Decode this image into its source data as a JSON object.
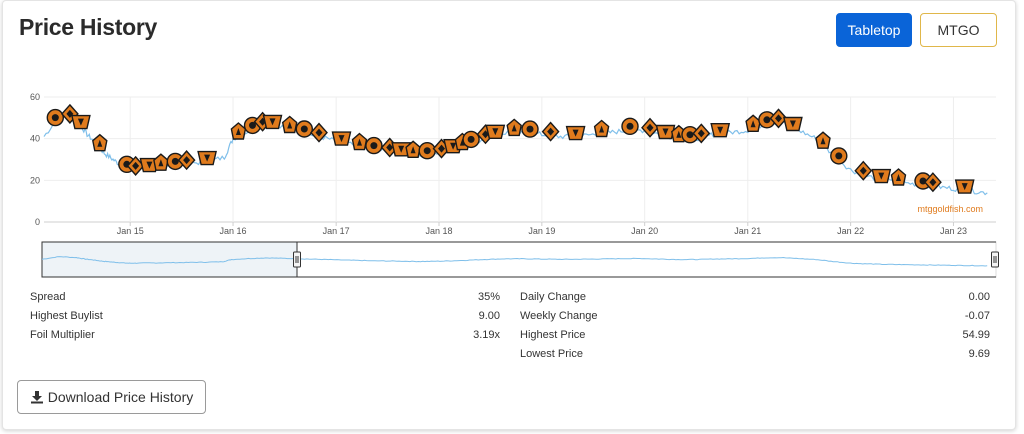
{
  "header": {
    "title": "Price History",
    "tabletop_label": "Tabletop",
    "mtgo_label": "MTGO"
  },
  "colors": {
    "accent": "#0a64d8",
    "mtgo_border": "#e0b74a",
    "line": "#7fbfea",
    "navigator_fill": "#eef3f7",
    "set_icon": "#e07b1d",
    "watermark": "#e07b1d"
  },
  "chart_data": {
    "type": "line",
    "title": "",
    "xlabel": "",
    "ylabel": "",
    "watermark": "mtggoldfish.com",
    "ylim": [
      0,
      60
    ],
    "yticks": [
      0,
      20,
      40,
      60
    ],
    "xlim": [
      "2014-03-01",
      "2023-06-01"
    ],
    "xticks": [
      "Jan 15",
      "Jan 16",
      "Jan 17",
      "Jan 18",
      "Jan 19",
      "Jan 20",
      "Jan 21",
      "Jan 22",
      "Jan 23"
    ],
    "grid": true,
    "legend": "none",
    "series": [
      {
        "x": [
          "2014-03-01",
          "2014-05-01",
          "2014-07-01",
          "2014-08-01",
          "2014-09-01",
          "2014-10-01",
          "2014-11-01",
          "2014-12-01",
          "2015-01-01",
          "2015-02-01",
          "2015-04-01",
          "2015-06-01",
          "2015-08-01",
          "2015-10-01",
          "2015-12-01",
          "2016-01-01",
          "2016-03-01",
          "2016-05-01",
          "2016-07-01",
          "2016-09-01",
          "2016-11-01",
          "2017-01-01",
          "2017-03-01",
          "2017-05-01",
          "2017-07-01",
          "2017-09-01",
          "2017-11-01",
          "2018-01-01",
          "2018-03-01",
          "2018-05-01",
          "2018-07-01",
          "2018-09-01",
          "2018-11-01",
          "2019-01-01",
          "2019-03-01",
          "2019-05-01",
          "2019-07-01",
          "2019-09-01",
          "2019-11-01",
          "2020-01-01",
          "2020-03-01",
          "2020-05-01",
          "2020-07-01",
          "2020-09-01",
          "2020-11-01",
          "2021-01-01",
          "2021-03-01",
          "2021-05-01",
          "2021-07-01",
          "2021-09-01",
          "2021-11-01",
          "2022-01-01",
          "2022-03-01",
          "2022-05-01",
          "2022-07-01",
          "2022-09-01",
          "2022-11-01",
          "2023-01-01",
          "2023-03-01",
          "2023-05-01"
        ],
        "y": [
          41,
          52,
          48,
          42,
          38,
          33,
          30,
          27,
          25,
          25,
          26,
          27,
          28,
          29,
          31,
          40,
          44,
          47,
          45,
          43,
          41,
          39,
          37,
          35,
          34,
          33,
          32,
          33,
          35,
          38,
          41,
          43,
          43,
          42,
          41,
          41,
          42,
          43,
          44,
          44,
          42,
          40,
          40,
          42,
          43,
          44,
          47,
          48,
          44,
          40,
          32,
          25,
          22,
          20,
          19,
          18,
          17,
          16,
          15,
          14
        ]
      }
    ]
  },
  "stats_left": [
    {
      "label": "Spread",
      "value": "35%"
    },
    {
      "label": "Highest Buylist",
      "value": "9.00"
    },
    {
      "label": "Foil Multiplier",
      "value": "3.19x"
    }
  ],
  "stats_right": [
    {
      "label": "Daily Change",
      "value": "0.00"
    },
    {
      "label": "Weekly Change",
      "value": "-0.07"
    },
    {
      "label": "Highest Price",
      "value": "54.99"
    },
    {
      "label": "Lowest Price",
      "value": "9.69"
    }
  ],
  "footer": {
    "download_label": "Download Price History",
    "download_icon": "download-icon"
  }
}
